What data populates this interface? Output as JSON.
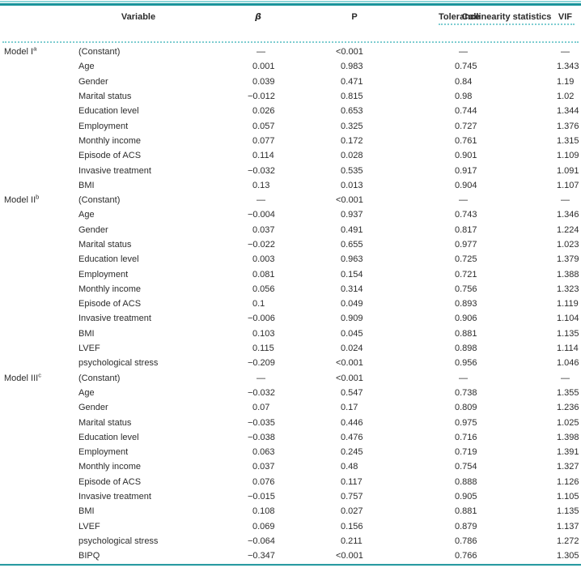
{
  "colors": {
    "rule_dark_teal": "#1a949b",
    "rule_light_teal": "#8ed6d9",
    "dotted_teal": "#7ecdd1",
    "bottom_rule_teal": "#2a9ba2",
    "text": "#2c2c2c"
  },
  "table": {
    "header": {
      "variable": "Variable",
      "beta": "β",
      "p": "P",
      "collinearity": "Collinearity statistics",
      "tolerance": "Tolerance",
      "vif": "VIF"
    },
    "models": [
      {
        "label": "Model I",
        "superscript": "a",
        "rows": [
          {
            "variable": "(Constant)",
            "beta": "—",
            "p": "<0.001",
            "tol": "—",
            "vif": "—"
          },
          {
            "variable": "Age",
            "beta": "0.001",
            "p": "0.983",
            "tol": "0.745",
            "vif": "1.343"
          },
          {
            "variable": "Gender",
            "beta": "0.039",
            "p": "0.471",
            "tol": "0.84",
            "vif": "1.19"
          },
          {
            "variable": "Marital status",
            "beta": "−0.012",
            "p": "0.815",
            "tol": "0.98",
            "vif": "1.02"
          },
          {
            "variable": "Education level",
            "beta": "0.026",
            "p": "0.653",
            "tol": "0.744",
            "vif": "1.344"
          },
          {
            "variable": "Employment",
            "beta": "0.057",
            "p": "0.325",
            "tol": "0.727",
            "vif": "1.376"
          },
          {
            "variable": "Monthly income",
            "beta": "0.077",
            "p": "0.172",
            "tol": "0.761",
            "vif": "1.315"
          },
          {
            "variable": "Episode of ACS",
            "beta": "0.114",
            "p": "0.028",
            "tol": "0.901",
            "vif": "1.109"
          },
          {
            "variable": "Invasive treatment",
            "beta": "−0.032",
            "p": "0.535",
            "tol": "0.917",
            "vif": "1.091"
          },
          {
            "variable": "BMI",
            "beta": "0.13",
            "p": "0.013",
            "tol": "0.904",
            "vif": "1.107"
          }
        ]
      },
      {
        "label": "Model II",
        "superscript": "b",
        "rows": [
          {
            "variable": "(Constant)",
            "beta": "—",
            "p": "<0.001",
            "tol": "—",
            "vif": "—"
          },
          {
            "variable": "Age",
            "beta": "−0.004",
            "p": "0.937",
            "tol": "0.743",
            "vif": "1.346"
          },
          {
            "variable": "Gender",
            "beta": "0.037",
            "p": "0.491",
            "tol": "0.817",
            "vif": "1.224"
          },
          {
            "variable": "Marital status",
            "beta": "−0.022",
            "p": "0.655",
            "tol": "0.977",
            "vif": "1.023"
          },
          {
            "variable": "Education level",
            "beta": "0.003",
            "p": "0.963",
            "tol": "0.725",
            "vif": "1.379"
          },
          {
            "variable": "Employment",
            "beta": "0.081",
            "p": "0.154",
            "tol": "0.721",
            "vif": "1.388"
          },
          {
            "variable": "Monthly income",
            "beta": "0.056",
            "p": "0.314",
            "tol": "0.756",
            "vif": "1.323"
          },
          {
            "variable": "Episode of ACS",
            "beta": "0.1",
            "p": "0.049",
            "tol": "0.893",
            "vif": "1.119"
          },
          {
            "variable": "Invasive treatment",
            "beta": "−0.006",
            "p": "0.909",
            "tol": "0.906",
            "vif": "1.104"
          },
          {
            "variable": "BMI",
            "beta": "0.103",
            "p": "0.045",
            "tol": "0.881",
            "vif": "1.135"
          },
          {
            "variable": "LVEF",
            "beta": "0.115",
            "p": "0.024",
            "tol": "0.898",
            "vif": "1.114"
          },
          {
            "variable": "psychological stress",
            "beta": "−0.209",
            "p": "<0.001",
            "tol": "0.956",
            "vif": "1.046"
          }
        ]
      },
      {
        "label": "Model III",
        "superscript": "c",
        "rows": [
          {
            "variable": "(Constant)",
            "beta": "—",
            "p": "<0.001",
            "tol": "—",
            "vif": "—"
          },
          {
            "variable": "Age",
            "beta": "−0.032",
            "p": "0.547",
            "tol": "0.738",
            "vif": "1.355"
          },
          {
            "variable": "Gender",
            "beta": "0.07",
            "p": "0.17",
            "tol": "0.809",
            "vif": "1.236"
          },
          {
            "variable": "Marital status",
            "beta": "−0.035",
            "p": "0.446",
            "tol": "0.975",
            "vif": "1.025"
          },
          {
            "variable": "Education level",
            "beta": "−0.038",
            "p": "0.476",
            "tol": "0.716",
            "vif": "1.398"
          },
          {
            "variable": "Employment",
            "beta": "0.063",
            "p": "0.245",
            "tol": "0.719",
            "vif": "1.391"
          },
          {
            "variable": "Monthly income",
            "beta": "0.037",
            "p": "0.48",
            "tol": "0.754",
            "vif": "1.327"
          },
          {
            "variable": "Episode of ACS",
            "beta": "0.076",
            "p": "0.117",
            "tol": "0.888",
            "vif": "1.126"
          },
          {
            "variable": "Invasive treatment",
            "beta": "−0.015",
            "p": "0.757",
            "tol": "0.905",
            "vif": "1.105"
          },
          {
            "variable": "BMI",
            "beta": "0.108",
            "p": "0.027",
            "tol": "0.881",
            "vif": "1.135"
          },
          {
            "variable": "LVEF",
            "beta": "0.069",
            "p": "0.156",
            "tol": "0.879",
            "vif": "1.137"
          },
          {
            "variable": "psychological stress",
            "beta": "−0.064",
            "p": "0.211",
            "tol": "0.786",
            "vif": "1.272"
          },
          {
            "variable": "BIPQ",
            "beta": "−0.347",
            "p": "<0.001",
            "tol": "0.766",
            "vif": "1.305"
          }
        ]
      }
    ]
  }
}
